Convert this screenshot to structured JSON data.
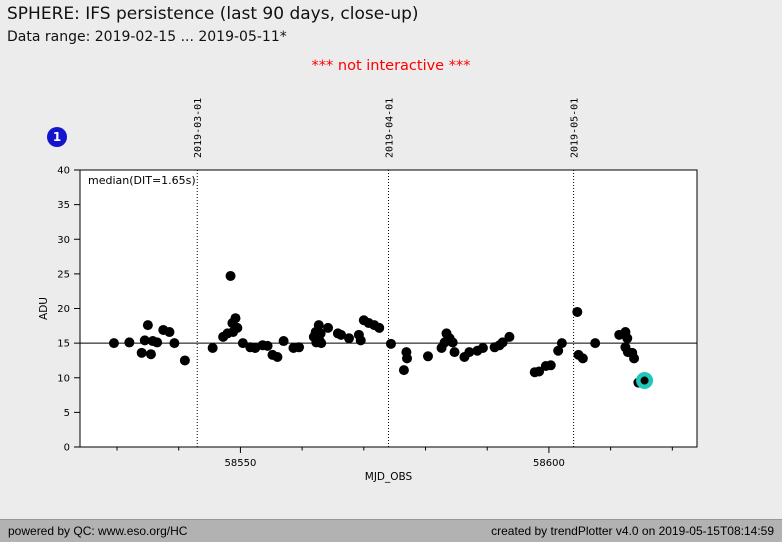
{
  "header": {
    "title": "SPHERE: IFS persistence (last 90 days, close-up)",
    "subtitle": "Data range: 2019-02-15 ... 2019-05-11*"
  },
  "notice": {
    "text": "*** not interactive ***",
    "color": "#ff0000"
  },
  "badge": {
    "label": "1",
    "color": "#1414cc"
  },
  "chart_data": {
    "type": "scatter",
    "xlabel": "MJD_OBS",
    "ylabel": "ADU",
    "xlim": [
      58524,
      58624
    ],
    "ylim": [
      0,
      40
    ],
    "yticks": [
      0,
      5,
      10,
      15,
      20,
      25,
      30,
      35,
      40
    ],
    "xticks_major": [
      58550,
      58600
    ],
    "xticks_minor": [
      58530,
      58540,
      58560,
      58570,
      58580,
      58590,
      58610,
      58620
    ],
    "annotation": "median(DIT=1.65s)",
    "median_line_y": 15,
    "grid": false,
    "date_gridlines": [
      {
        "label": "2019-03-01",
        "mjd": 58543
      },
      {
        "label": "2019-04-01",
        "mjd": 58574
      },
      {
        "label": "2019-05-01",
        "mjd": 58604
      }
    ],
    "series": [
      {
        "name": "persistence measurements",
        "marker": "dot",
        "color": "#000000",
        "points": [
          [
            58529.5,
            15.0
          ],
          [
            58532.0,
            15.1
          ],
          [
            58534.0,
            13.6
          ],
          [
            58534.5,
            15.4
          ],
          [
            58535.0,
            17.6
          ],
          [
            58535.5,
            13.4
          ],
          [
            58535.8,
            15.3
          ],
          [
            58536.5,
            15.1
          ],
          [
            58537.5,
            16.9
          ],
          [
            58538.5,
            16.6
          ],
          [
            58539.3,
            15.0
          ],
          [
            58541.0,
            12.5
          ],
          [
            58545.5,
            14.3
          ],
          [
            58547.2,
            15.9
          ],
          [
            58547.9,
            16.4
          ],
          [
            58548.4,
            24.7
          ],
          [
            58548.7,
            17.9
          ],
          [
            58548.8,
            16.6
          ],
          [
            58549.2,
            18.6
          ],
          [
            58549.5,
            17.2
          ],
          [
            58550.4,
            15.0
          ],
          [
            58551.6,
            14.4
          ],
          [
            58552.4,
            14.3
          ],
          [
            58553.6,
            14.7
          ],
          [
            58554.4,
            14.6
          ],
          [
            58555.2,
            13.3
          ],
          [
            58556.0,
            13.0
          ],
          [
            58557.0,
            15.3
          ],
          [
            58558.6,
            14.3
          ],
          [
            58559.5,
            14.4
          ],
          [
            58561.9,
            15.9
          ],
          [
            58562.2,
            16.6
          ],
          [
            58562.3,
            15.1
          ],
          [
            58562.7,
            17.6
          ],
          [
            58562.8,
            15.4
          ],
          [
            58563.0,
            16.4
          ],
          [
            58563.1,
            15.0
          ],
          [
            58564.2,
            17.2
          ],
          [
            58565.8,
            16.4
          ],
          [
            58566.3,
            16.2
          ],
          [
            58567.6,
            15.7
          ],
          [
            58569.2,
            16.2
          ],
          [
            58569.5,
            15.4
          ],
          [
            58570.0,
            18.3
          ],
          [
            58570.8,
            17.9
          ],
          [
            58571.7,
            17.6
          ],
          [
            58572.5,
            17.2
          ],
          [
            58574.4,
            14.9
          ],
          [
            58576.5,
            11.1
          ],
          [
            58576.9,
            13.7
          ],
          [
            58577.0,
            12.8
          ],
          [
            58580.4,
            13.1
          ],
          [
            58582.6,
            14.3
          ],
          [
            58583.1,
            15.1
          ],
          [
            58583.4,
            16.4
          ],
          [
            58583.9,
            15.7
          ],
          [
            58584.4,
            15.1
          ],
          [
            58584.7,
            13.7
          ],
          [
            58586.3,
            13.0
          ],
          [
            58587.1,
            13.7
          ],
          [
            58588.4,
            13.9
          ],
          [
            58589.3,
            14.3
          ],
          [
            58591.2,
            14.4
          ],
          [
            58592.0,
            14.7
          ],
          [
            58592.5,
            15.1
          ],
          [
            58593.6,
            15.9
          ],
          [
            58597.7,
            10.8
          ],
          [
            58598.4,
            10.9
          ],
          [
            58599.5,
            11.7
          ],
          [
            58600.3,
            11.8
          ],
          [
            58601.5,
            13.9
          ],
          [
            58602.1,
            15.0
          ],
          [
            58604.6,
            19.5
          ],
          [
            58604.8,
            13.3
          ],
          [
            58605.5,
            12.8
          ],
          [
            58607.5,
            15.0
          ],
          [
            58611.4,
            16.2
          ],
          [
            58612.4,
            16.6
          ],
          [
            58612.4,
            14.4
          ],
          [
            58612.7,
            15.7
          ],
          [
            58612.8,
            13.7
          ],
          [
            58613.5,
            13.6
          ],
          [
            58613.8,
            12.8
          ],
          [
            58614.5,
            9.3
          ]
        ]
      },
      {
        "name": "latest highlighted measurement",
        "marker": "ring-dot",
        "color": "#20c8bc",
        "core_color": "#000000",
        "points": [
          [
            58615.5,
            9.6
          ]
        ]
      }
    ]
  },
  "footer": {
    "left": "powered by QC: www.eso.org/HC",
    "right": "created by trendPlotter v4.0 on 2019-05-15T08:14:59"
  }
}
